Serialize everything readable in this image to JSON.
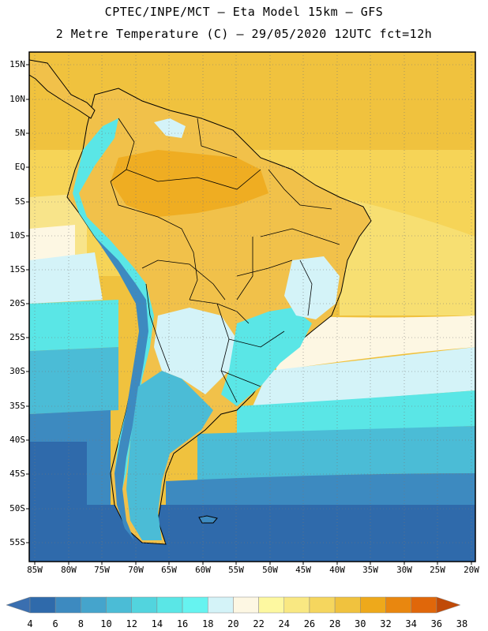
{
  "header": {
    "line1": "CPTEC/INPE/MCT –  Eta Model 15km – GFS",
    "line2": "2 Metre Temperature (C) – 29/05/2020 12UTC fct=12h"
  },
  "axes": {
    "lat_labels": [
      "15N",
      "10N",
      "5N",
      "EQ",
      "5S",
      "10S",
      "15S",
      "20S",
      "25S",
      "30S",
      "35S",
      "40S",
      "45S",
      "50S",
      "55S"
    ],
    "lon_labels": [
      "85W",
      "80W",
      "75W",
      "70W",
      "65W",
      "60W",
      "55W",
      "50W",
      "45W",
      "40W",
      "35W",
      "30W",
      "25W",
      "20W"
    ]
  },
  "colorbar": {
    "labels": [
      "4",
      "6",
      "8",
      "10",
      "12",
      "14",
      "16",
      "18",
      "20",
      "22",
      "24",
      "26",
      "28",
      "30",
      "32",
      "34",
      "36",
      "38"
    ],
    "colors": [
      "#3a6fb0",
      "#2f6aab",
      "#3d8ac0",
      "#45a4cc",
      "#4bbcd6",
      "#52d4de",
      "#5ae6e6",
      "#66f3f0",
      "#d4f3f8",
      "#fdf7e3",
      "#fdf8a0",
      "#f9e882",
      "#f5d65e",
      "#f0c23e",
      "#eea91b",
      "#e9870f",
      "#e0670a",
      "#c04a08"
    ]
  },
  "map": {
    "ocean_colors": {
      "warm_north": "#f1c23e",
      "warm_mid": "#f7e07a",
      "cream": "#fdf7e3",
      "pale_cyan": "#d4f3f8",
      "cyan": "#5ae6e6",
      "teal": "#4bbcd6",
      "blue": "#3d8ac0",
      "deep_blue": "#2f6aab"
    }
  }
}
